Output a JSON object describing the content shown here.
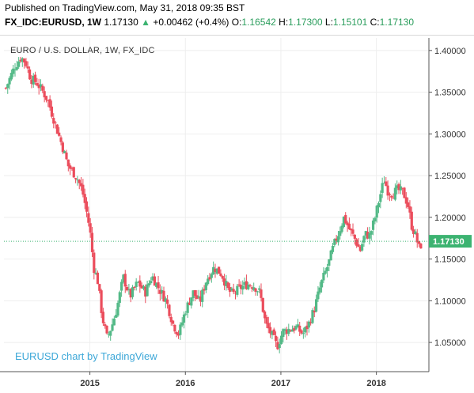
{
  "header": {
    "published": "Published on TradingView.com, May 31, 2018 09:35 BST",
    "symbol": "FX_IDC:EURUSD, 1W",
    "last": "1.17130",
    "arrow": "▲",
    "change": "+0.00462 (+0.4%)",
    "o_label": "O:",
    "o_value": "1.16542",
    "h_label": "H:",
    "h_value": "1.17300",
    "l_label": "L:",
    "l_value": "1.15101",
    "c_label": "C:",
    "c_value": "1.17130"
  },
  "watermark": "EURUSD chart by TradingView",
  "colors": {
    "up": "#53b987",
    "down": "#eb4d5c",
    "price_line": "#3cb371",
    "grid": "#eeeeee"
  },
  "chart_data": {
    "type": "candlestick",
    "title": "EURO / U.S. DOLLAR, 1W, FX_IDC",
    "x_axis": {
      "ticks": [
        "2015",
        "2016",
        "2017",
        "2018"
      ],
      "tick_times": [
        2015.0,
        2016.0,
        2017.0,
        2018.0
      ]
    },
    "y_axis": {
      "side": "right",
      "ticks": [
        "1.40000",
        "1.35000",
        "1.30000",
        "1.25000",
        "1.20000",
        "1.15000",
        "1.10000",
        "1.05000"
      ],
      "range": [
        1.015,
        1.415
      ]
    },
    "x_range": [
      2014.1,
      2018.55
    ],
    "last_price": {
      "value": 1.1713,
      "label": "1.17130"
    },
    "close_path": [
      [
        2014.12,
        1.355
      ],
      [
        2014.18,
        1.372
      ],
      [
        2014.22,
        1.382
      ],
      [
        2014.28,
        1.392
      ],
      [
        2014.33,
        1.385
      ],
      [
        2014.38,
        1.366
      ],
      [
        2014.44,
        1.362
      ],
      [
        2014.5,
        1.352
      ],
      [
        2014.56,
        1.34
      ],
      [
        2014.62,
        1.318
      ],
      [
        2014.67,
        1.3
      ],
      [
        2014.72,
        1.282
      ],
      [
        2014.77,
        1.262
      ],
      [
        2014.82,
        1.255
      ],
      [
        2014.87,
        1.246
      ],
      [
        2014.92,
        1.232
      ],
      [
        2014.96,
        1.21
      ],
      [
        2015.0,
        1.185
      ],
      [
        2015.04,
        1.14
      ],
      [
        2015.08,
        1.125
      ],
      [
        2015.13,
        1.08
      ],
      [
        2015.18,
        1.055
      ],
      [
        2015.23,
        1.07
      ],
      [
        2015.28,
        1.09
      ],
      [
        2015.35,
        1.128
      ],
      [
        2015.42,
        1.105
      ],
      [
        2015.5,
        1.122
      ],
      [
        2015.58,
        1.11
      ],
      [
        2015.65,
        1.13
      ],
      [
        2015.72,
        1.115
      ],
      [
        2015.8,
        1.1
      ],
      [
        2015.87,
        1.072
      ],
      [
        2015.93,
        1.06
      ],
      [
        2016.0,
        1.088
      ],
      [
        2016.08,
        1.11
      ],
      [
        2016.15,
        1.098
      ],
      [
        2016.22,
        1.125
      ],
      [
        2016.3,
        1.14
      ],
      [
        2016.38,
        1.132
      ],
      [
        2016.45,
        1.112
      ],
      [
        2016.5,
        1.108
      ],
      [
        2016.58,
        1.116
      ],
      [
        2016.65,
        1.12
      ],
      [
        2016.72,
        1.118
      ],
      [
        2016.78,
        1.11
      ],
      [
        2016.84,
        1.072
      ],
      [
        2016.9,
        1.06
      ],
      [
        2016.96,
        1.045
      ],
      [
        2017.02,
        1.063
      ],
      [
        2017.09,
        1.066
      ],
      [
        2017.16,
        1.068
      ],
      [
        2017.23,
        1.06
      ],
      [
        2017.29,
        1.072
      ],
      [
        2017.35,
        1.09
      ],
      [
        2017.42,
        1.12
      ],
      [
        2017.5,
        1.145
      ],
      [
        2017.55,
        1.165
      ],
      [
        2017.6,
        1.18
      ],
      [
        2017.66,
        1.2
      ],
      [
        2017.72,
        1.185
      ],
      [
        2017.77,
        1.175
      ],
      [
        2017.83,
        1.16
      ],
      [
        2017.88,
        1.18
      ],
      [
        2017.93,
        1.178
      ],
      [
        2017.98,
        1.197
      ],
      [
        2018.03,
        1.222
      ],
      [
        2018.08,
        1.245
      ],
      [
        2018.12,
        1.232
      ],
      [
        2018.17,
        1.228
      ],
      [
        2018.22,
        1.233
      ],
      [
        2018.28,
        1.23
      ],
      [
        2018.33,
        1.215
      ],
      [
        2018.37,
        1.19
      ],
      [
        2018.41,
        1.178
      ],
      [
        2018.45,
        1.162
      ],
      [
        2018.48,
        1.171
      ]
    ]
  }
}
